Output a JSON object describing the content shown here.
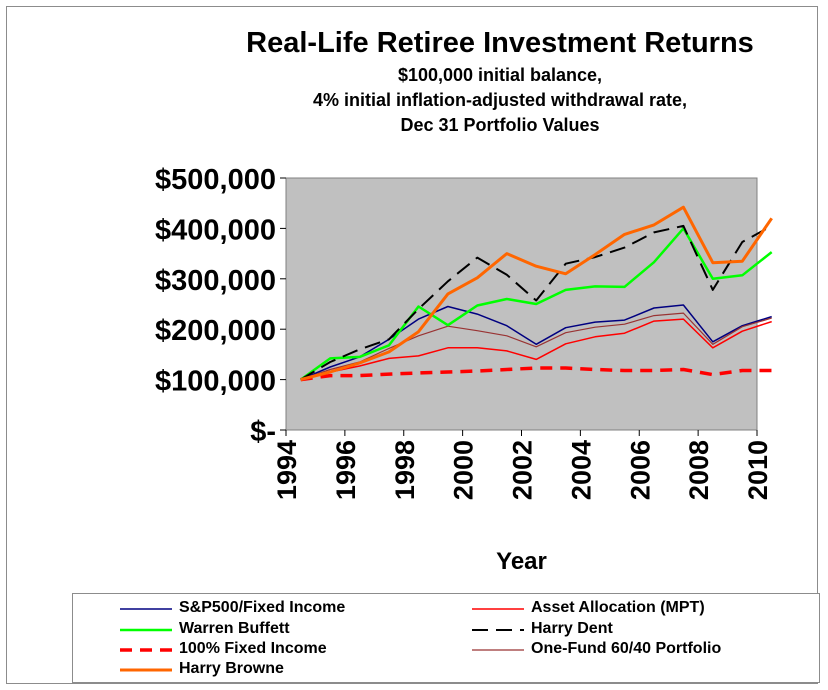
{
  "title": "Real-Life Retiree Investment Returns",
  "subtitle_lines": [
    "$100,000 initial balance,",
    "4% initial inflation-adjusted withdrawal rate,",
    "Dec 31 Portfolio Values"
  ],
  "chart_data": {
    "type": "line",
    "xlabel": "Year",
    "ylabel": "",
    "ylim": [
      0,
      500000
    ],
    "yticks": [
      0,
      100000,
      200000,
      300000,
      400000,
      500000
    ],
    "ytick_labels": [
      "$-",
      "$100,000",
      "$200,000",
      "$300,000",
      "$400,000",
      "$500,000"
    ],
    "xlim": [
      1994,
      2010
    ],
    "xticks": [
      1994,
      1996,
      1998,
      2000,
      2002,
      2004,
      2006,
      2008,
      2010
    ],
    "xtick_labels": [
      "1994",
      "1996",
      "1998",
      "2000",
      "2002",
      "2004",
      "2006",
      "2008",
      "2010"
    ],
    "x": [
      1994.5,
      1995.5,
      1996.5,
      1997.5,
      1998.5,
      1999.5,
      2000.5,
      2001.5,
      2002.5,
      2003.5,
      2004.5,
      2005.5,
      2006.5,
      2007.5,
      2008.5,
      2009.5,
      2010.5
    ],
    "plot_background": "#c0c0c0",
    "grid": false,
    "legend_position": "bottom",
    "series": [
      {
        "name": "S&P500/Fixed Income",
        "color": "#000080",
        "dash": "solid",
        "width": 1.5,
        "values": [
          100000,
          125000,
          145000,
          180000,
          220000,
          245000,
          230000,
          207000,
          170000,
          203000,
          214000,
          218000,
          242000,
          248000,
          175000,
          207000,
          225000
        ]
      },
      {
        "name": "Asset Allocation (MPT)",
        "color": "#ff0000",
        "dash": "solid",
        "width": 1.5,
        "values": [
          100000,
          115000,
          127000,
          142000,
          147000,
          163000,
          163000,
          157000,
          140000,
          171000,
          185000,
          192000,
          216000,
          220000,
          163000,
          196000,
          215000
        ]
      },
      {
        "name": "Warren Buffett",
        "color": "#00ff00",
        "dash": "solid",
        "width": 2.5,
        "values": [
          100000,
          142000,
          145000,
          168000,
          245000,
          208000,
          247000,
          260000,
          250000,
          278000,
          285000,
          284000,
          333000,
          400000,
          300000,
          307000,
          353000
        ]
      },
      {
        "name": "Harry Dent",
        "color": "#000000",
        "dash": "long-dash",
        "width": 2,
        "values": [
          100000,
          135000,
          160000,
          180000,
          240000,
          295000,
          342000,
          308000,
          257000,
          330000,
          343000,
          362000,
          392000,
          405000,
          278000,
          373000,
          405000
        ]
      },
      {
        "name": "100% Fixed Income",
        "color": "#ff0000",
        "dash": "dash",
        "width": 3.5,
        "values": [
          100000,
          108000,
          108000,
          111000,
          113000,
          115000,
          117000,
          120000,
          123000,
          123000,
          120000,
          118000,
          118000,
          120000,
          110000,
          118000,
          118000
        ]
      },
      {
        "name": "One-Fund 60/40 Portfolio",
        "color": "#993333",
        "dash": "solid",
        "width": 1.2,
        "values": [
          100000,
          120000,
          135000,
          162000,
          187000,
          206000,
          197000,
          187000,
          165000,
          193000,
          204000,
          210000,
          227000,
          232000,
          170000,
          205000,
          222000
        ]
      },
      {
        "name": "Harry Browne",
        "color": "#ff6600",
        "dash": "solid",
        "width": 3,
        "values": [
          100000,
          115000,
          133000,
          155000,
          195000,
          270000,
          302000,
          350000,
          325000,
          310000,
          348000,
          388000,
          407000,
          442000,
          332000,
          335000,
          420000
        ]
      }
    ]
  }
}
